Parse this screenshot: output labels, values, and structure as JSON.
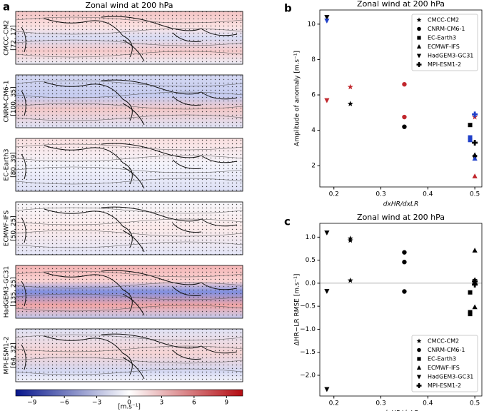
{
  "maps": {
    "panel": "a",
    "title": "Zonal wind at 200 hPa",
    "items": [
      {
        "name": "CMCC-CM2",
        "label": "[72, 17]"
      },
      {
        "name": "CNRM-CM6-1",
        "label": "[100, 35]"
      },
      {
        "name": "EC-Earth3",
        "label": "[80, 39]"
      },
      {
        "name": "ECMWF-IFS",
        "label": "[50, 25]"
      },
      {
        "name": "HadGEM3-GC31",
        "label": "[135, 25]"
      },
      {
        "name": "MPI-ESM1-2",
        "label": "[64, 32]"
      }
    ],
    "colorbar": {
      "clim": [
        -10.5,
        10.5
      ],
      "ticks": [
        {
          "value": -9,
          "label": "−9"
        },
        {
          "value": -6,
          "label": "−6"
        },
        {
          "value": -3,
          "label": "−3"
        },
        0,
        3,
        6,
        9
      ],
      "unit": "[m.s⁻¹]",
      "colors": [
        "#08178c",
        "#ffffff",
        "#b40c12"
      ]
    }
  },
  "chart_data": [
    {
      "type": "scatter",
      "panel": "b",
      "title": "Zonal wind at 200 hPa",
      "xlabel": "dxHR/dxLR",
      "ylabel": "Amplitude of anomaly [m.s⁻¹]",
      "xlim": [
        0.17,
        0.515
      ],
      "ylim": [
        0.8,
        10.8
      ],
      "xticks": [
        0.2,
        0.3,
        0.4,
        0.5
      ],
      "yticks": [
        2,
        4,
        6,
        8,
        10
      ],
      "legend": "upper right",
      "series": [
        {
          "name": "CMCC-CM2",
          "marker": "star",
          "x": [
            0.235,
            0.235,
            0.5,
            0.5
          ],
          "values": [
            5.5,
            6.45,
            4.75,
            2.55
          ],
          "colors": [
            "#000000",
            "#c1272d",
            "#c1272d",
            "#000000"
          ]
        },
        {
          "name": "CNRM-CM6-1",
          "marker": "circle",
          "x": [
            0.35,
            0.35,
            0.35
          ],
          "values": [
            4.2,
            4.75,
            6.6
          ],
          "colors": [
            "#000000",
            "#c1272d",
            "#c1272d"
          ]
        },
        {
          "name": "EC-Earth3",
          "marker": "square",
          "x": [
            0.49,
            0.49,
            0.49
          ],
          "values": [
            4.3,
            3.6,
            3.45
          ],
          "colors": [
            "#000000",
            "#2040c8",
            "#2040c8"
          ]
        },
        {
          "name": "ECMWF-IFS",
          "marker": "triangle-up",
          "x": [
            0.5,
            0.5,
            0.5
          ],
          "values": [
            2.4,
            1.4,
            2.6
          ],
          "colors": [
            "#2040c8",
            "#c1272d",
            "#000000"
          ]
        },
        {
          "name": "HadGEM3-GC31",
          "marker": "triangle-down",
          "x": [
            0.185,
            0.185,
            0.185
          ],
          "values": [
            10.4,
            10.2,
            5.7
          ],
          "colors": [
            "#000000",
            "#2040c8",
            "#c1272d"
          ]
        },
        {
          "name": "MPI-ESM1-2",
          "marker": "plus",
          "x": [
            0.5,
            0.5
          ],
          "values": [
            4.9,
            3.3
          ],
          "colors": [
            "#2040c8",
            "#000000"
          ]
        }
      ]
    },
    {
      "type": "scatter",
      "panel": "c",
      "title": "Zonal wind at 200 hPa",
      "xlabel": "dxHR/dxLR",
      "ylabel": "ΔHR−LR RMSE [m.s⁻¹]",
      "xlim": [
        0.17,
        0.515
      ],
      "ylim": [
        -2.45,
        1.3
      ],
      "xticks": [
        0.2,
        0.3,
        0.4,
        0.5
      ],
      "yticks": [
        {
          "value": -2,
          "label": "−2.0"
        },
        {
          "value": -1.5,
          "label": "−1.5"
        },
        {
          "value": -1,
          "label": "−1.0"
        },
        {
          "value": -0.5,
          "label": "−0.5"
        },
        {
          "value": 0,
          "label": "0.0"
        },
        0.5,
        {
          "value": 1,
          "label": "1.0"
        }
      ],
      "hline": 0,
      "legend": "lower right",
      "series": [
        {
          "name": "CMCC-CM2",
          "marker": "star",
          "x": [
            0.235,
            0.235,
            0.235,
            0.5
          ],
          "values": [
            0.97,
            0.93,
            0.06,
            0.07
          ],
          "color": "#000000"
        },
        {
          "name": "CNRM-CM6-1",
          "marker": "circle",
          "x": [
            0.35,
            0.35,
            0.35
          ],
          "values": [
            0.67,
            0.46,
            -0.18
          ],
          "color": "#000000"
        },
        {
          "name": "EC-Earth3",
          "marker": "square",
          "x": [
            0.49,
            0.49,
            0.49
          ],
          "values": [
            -0.2,
            -0.63,
            -0.67
          ],
          "color": "#000000"
        },
        {
          "name": "ECMWF-IFS",
          "marker": "triangle-up",
          "x": [
            0.5,
            0.5,
            0.5
          ],
          "values": [
            0.71,
            0.02,
            -0.52
          ],
          "color": "#000000"
        },
        {
          "name": "HadGEM3-GC31",
          "marker": "triangle-down",
          "x": [
            0.185,
            0.185,
            0.185
          ],
          "values": [
            1.1,
            -0.17,
            -2.3
          ],
          "color": "#000000"
        },
        {
          "name": "MPI-ESM1-2",
          "marker": "plus",
          "x": [
            0.5,
            0.5
          ],
          "values": [
            -0.03,
            0.04
          ],
          "color": "#000000"
        }
      ]
    }
  ]
}
